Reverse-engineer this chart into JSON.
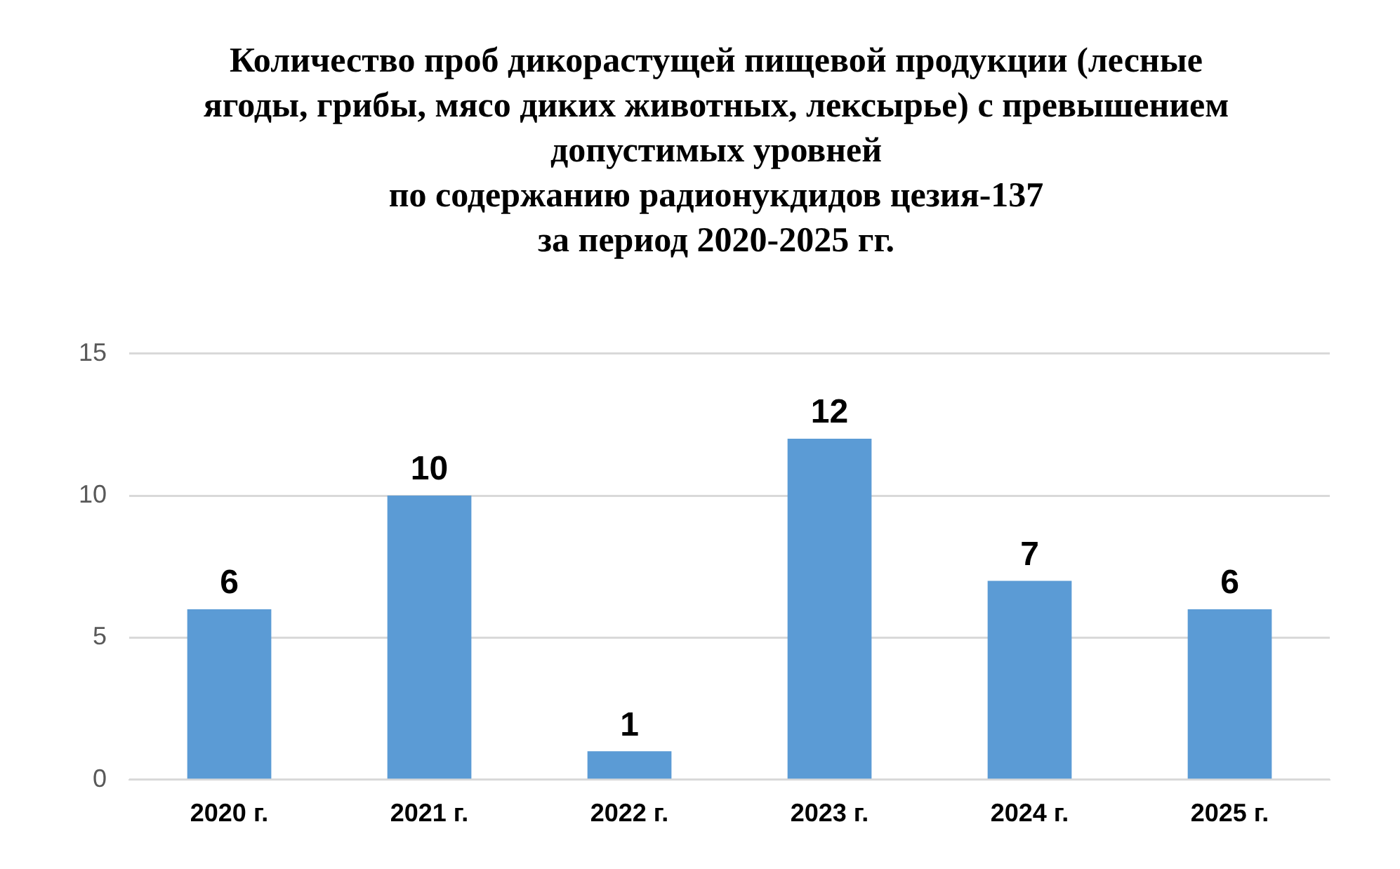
{
  "chart_data": {
    "type": "bar",
    "title": "Количество проб дикорастущей пищевой продукции (лесные\nягоды, грибы, мясо диких животных, лексырье) с превышением\nдопустимых уровней\nпо содержанию радионукдидов цезия-137\nза период 2020-2025 гг.",
    "categories": [
      "2020 г.",
      "2021 г.",
      "2022 г.",
      "2023 г.",
      "2024 г.",
      "2025 г."
    ],
    "values": [
      6,
      10,
      1,
      12,
      7,
      6
    ],
    "color": "#5b9bd5",
    "ylim": [
      0,
      15
    ],
    "yticks": [
      0,
      5,
      10,
      15
    ],
    "grid": "y",
    "data_labels": true
  }
}
